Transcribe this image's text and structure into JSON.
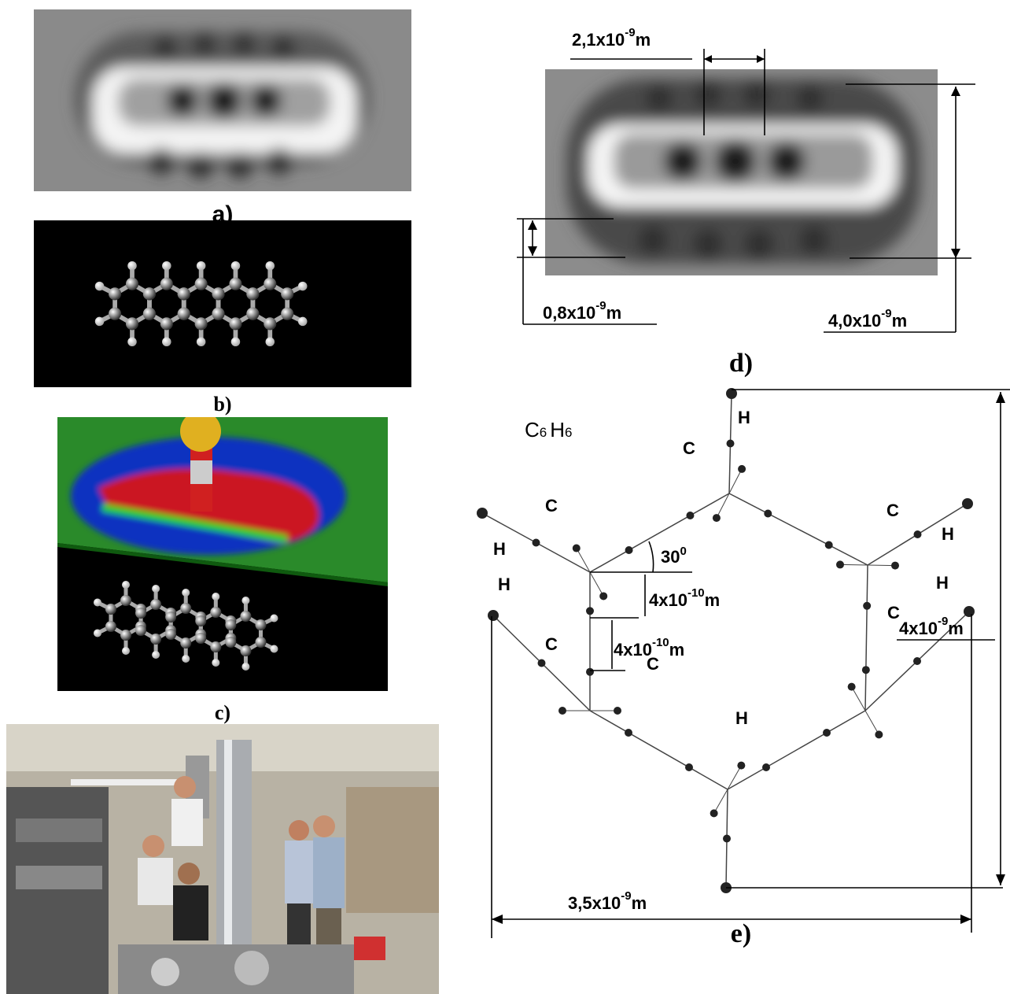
{
  "panels": {
    "a": {
      "label": "a)"
    },
    "b": {
      "label": "b)"
    },
    "c": {
      "label": "c)"
    },
    "d": {
      "label": "d)",
      "dims": [
        {
          "base": "2,1x10",
          "exp": "-9",
          "unit": "m"
        },
        {
          "base": "0,8x10",
          "exp": "-9",
          "unit": "m"
        },
        {
          "base": "4,0x10",
          "exp": "-9",
          "unit": "m"
        }
      ]
    },
    "e": {
      "label": "e)",
      "formula": {
        "c": "C",
        "c_sub": "6",
        "h": "H",
        "h_sub": "6"
      },
      "atoms": [
        "H",
        "C",
        "C",
        "H",
        "C",
        "H",
        "C",
        "H",
        "H",
        "C",
        "C",
        "H"
      ],
      "angle": {
        "base": "30",
        "exp": "0"
      },
      "dims": [
        {
          "base": "4x10",
          "exp": "-10",
          "unit": "m"
        },
        {
          "base": "4x10",
          "exp": "-10",
          "unit": "m"
        },
        {
          "base": "4x10",
          "exp": "-9",
          "unit": "m"
        },
        {
          "base": "3,5x10",
          "exp": "-9",
          "unit": "m"
        }
      ]
    }
  }
}
